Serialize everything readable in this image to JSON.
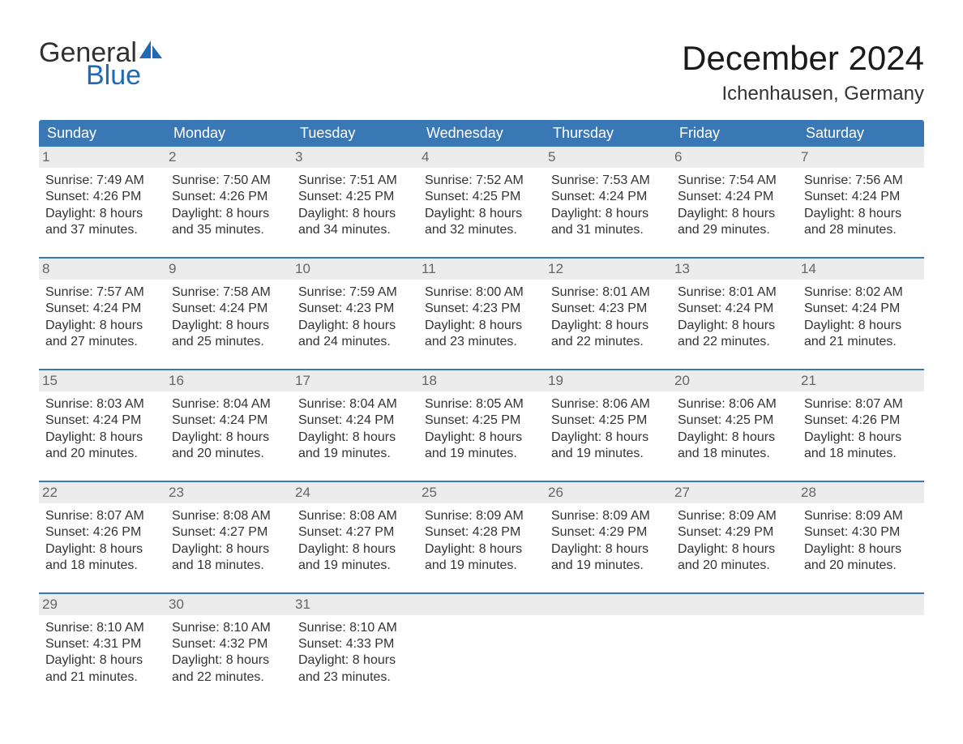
{
  "brand": {
    "general": "General",
    "blue": "Blue",
    "accent": "#1f6ab2"
  },
  "title": "December 2024",
  "location": "Ichenhausen, Germany",
  "colors": {
    "header_bg": "#3a78b5",
    "header_text": "#ffffff",
    "daynum_bg": "#ececec",
    "daynum_text": "#666666",
    "body_text": "#333333",
    "week_divider": "#3a78b5",
    "page_bg": "#ffffff"
  },
  "weekdays": [
    "Sunday",
    "Monday",
    "Tuesday",
    "Wednesday",
    "Thursday",
    "Friday",
    "Saturday"
  ],
  "weeks": [
    [
      {
        "num": "1",
        "sunrise": "Sunrise: 7:49 AM",
        "sunset": "Sunset: 4:26 PM",
        "dl1": "Daylight: 8 hours",
        "dl2": "and 37 minutes."
      },
      {
        "num": "2",
        "sunrise": "Sunrise: 7:50 AM",
        "sunset": "Sunset: 4:26 PM",
        "dl1": "Daylight: 8 hours",
        "dl2": "and 35 minutes."
      },
      {
        "num": "3",
        "sunrise": "Sunrise: 7:51 AM",
        "sunset": "Sunset: 4:25 PM",
        "dl1": "Daylight: 8 hours",
        "dl2": "and 34 minutes."
      },
      {
        "num": "4",
        "sunrise": "Sunrise: 7:52 AM",
        "sunset": "Sunset: 4:25 PM",
        "dl1": "Daylight: 8 hours",
        "dl2": "and 32 minutes."
      },
      {
        "num": "5",
        "sunrise": "Sunrise: 7:53 AM",
        "sunset": "Sunset: 4:24 PM",
        "dl1": "Daylight: 8 hours",
        "dl2": "and 31 minutes."
      },
      {
        "num": "6",
        "sunrise": "Sunrise: 7:54 AM",
        "sunset": "Sunset: 4:24 PM",
        "dl1": "Daylight: 8 hours",
        "dl2": "and 29 minutes."
      },
      {
        "num": "7",
        "sunrise": "Sunrise: 7:56 AM",
        "sunset": "Sunset: 4:24 PM",
        "dl1": "Daylight: 8 hours",
        "dl2": "and 28 minutes."
      }
    ],
    [
      {
        "num": "8",
        "sunrise": "Sunrise: 7:57 AM",
        "sunset": "Sunset: 4:24 PM",
        "dl1": "Daylight: 8 hours",
        "dl2": "and 27 minutes."
      },
      {
        "num": "9",
        "sunrise": "Sunrise: 7:58 AM",
        "sunset": "Sunset: 4:24 PM",
        "dl1": "Daylight: 8 hours",
        "dl2": "and 25 minutes."
      },
      {
        "num": "10",
        "sunrise": "Sunrise: 7:59 AM",
        "sunset": "Sunset: 4:23 PM",
        "dl1": "Daylight: 8 hours",
        "dl2": "and 24 minutes."
      },
      {
        "num": "11",
        "sunrise": "Sunrise: 8:00 AM",
        "sunset": "Sunset: 4:23 PM",
        "dl1": "Daylight: 8 hours",
        "dl2": "and 23 minutes."
      },
      {
        "num": "12",
        "sunrise": "Sunrise: 8:01 AM",
        "sunset": "Sunset: 4:23 PM",
        "dl1": "Daylight: 8 hours",
        "dl2": "and 22 minutes."
      },
      {
        "num": "13",
        "sunrise": "Sunrise: 8:01 AM",
        "sunset": "Sunset: 4:24 PM",
        "dl1": "Daylight: 8 hours",
        "dl2": "and 22 minutes."
      },
      {
        "num": "14",
        "sunrise": "Sunrise: 8:02 AM",
        "sunset": "Sunset: 4:24 PM",
        "dl1": "Daylight: 8 hours",
        "dl2": "and 21 minutes."
      }
    ],
    [
      {
        "num": "15",
        "sunrise": "Sunrise: 8:03 AM",
        "sunset": "Sunset: 4:24 PM",
        "dl1": "Daylight: 8 hours",
        "dl2": "and 20 minutes."
      },
      {
        "num": "16",
        "sunrise": "Sunrise: 8:04 AM",
        "sunset": "Sunset: 4:24 PM",
        "dl1": "Daylight: 8 hours",
        "dl2": "and 20 minutes."
      },
      {
        "num": "17",
        "sunrise": "Sunrise: 8:04 AM",
        "sunset": "Sunset: 4:24 PM",
        "dl1": "Daylight: 8 hours",
        "dl2": "and 19 minutes."
      },
      {
        "num": "18",
        "sunrise": "Sunrise: 8:05 AM",
        "sunset": "Sunset: 4:25 PM",
        "dl1": "Daylight: 8 hours",
        "dl2": "and 19 minutes."
      },
      {
        "num": "19",
        "sunrise": "Sunrise: 8:06 AM",
        "sunset": "Sunset: 4:25 PM",
        "dl1": "Daylight: 8 hours",
        "dl2": "and 19 minutes."
      },
      {
        "num": "20",
        "sunrise": "Sunrise: 8:06 AM",
        "sunset": "Sunset: 4:25 PM",
        "dl1": "Daylight: 8 hours",
        "dl2": "and 18 minutes."
      },
      {
        "num": "21",
        "sunrise": "Sunrise: 8:07 AM",
        "sunset": "Sunset: 4:26 PM",
        "dl1": "Daylight: 8 hours",
        "dl2": "and 18 minutes."
      }
    ],
    [
      {
        "num": "22",
        "sunrise": "Sunrise: 8:07 AM",
        "sunset": "Sunset: 4:26 PM",
        "dl1": "Daylight: 8 hours",
        "dl2": "and 18 minutes."
      },
      {
        "num": "23",
        "sunrise": "Sunrise: 8:08 AM",
        "sunset": "Sunset: 4:27 PM",
        "dl1": "Daylight: 8 hours",
        "dl2": "and 18 minutes."
      },
      {
        "num": "24",
        "sunrise": "Sunrise: 8:08 AM",
        "sunset": "Sunset: 4:27 PM",
        "dl1": "Daylight: 8 hours",
        "dl2": "and 19 minutes."
      },
      {
        "num": "25",
        "sunrise": "Sunrise: 8:09 AM",
        "sunset": "Sunset: 4:28 PM",
        "dl1": "Daylight: 8 hours",
        "dl2": "and 19 minutes."
      },
      {
        "num": "26",
        "sunrise": "Sunrise: 8:09 AM",
        "sunset": "Sunset: 4:29 PM",
        "dl1": "Daylight: 8 hours",
        "dl2": "and 19 minutes."
      },
      {
        "num": "27",
        "sunrise": "Sunrise: 8:09 AM",
        "sunset": "Sunset: 4:29 PM",
        "dl1": "Daylight: 8 hours",
        "dl2": "and 20 minutes."
      },
      {
        "num": "28",
        "sunrise": "Sunrise: 8:09 AM",
        "sunset": "Sunset: 4:30 PM",
        "dl1": "Daylight: 8 hours",
        "dl2": "and 20 minutes."
      }
    ],
    [
      {
        "num": "29",
        "sunrise": "Sunrise: 8:10 AM",
        "sunset": "Sunset: 4:31 PM",
        "dl1": "Daylight: 8 hours",
        "dl2": "and 21 minutes."
      },
      {
        "num": "30",
        "sunrise": "Sunrise: 8:10 AM",
        "sunset": "Sunset: 4:32 PM",
        "dl1": "Daylight: 8 hours",
        "dl2": "and 22 minutes."
      },
      {
        "num": "31",
        "sunrise": "Sunrise: 8:10 AM",
        "sunset": "Sunset: 4:33 PM",
        "dl1": "Daylight: 8 hours",
        "dl2": "and 23 minutes."
      },
      {
        "empty": true
      },
      {
        "empty": true
      },
      {
        "empty": true
      },
      {
        "empty": true
      }
    ]
  ]
}
